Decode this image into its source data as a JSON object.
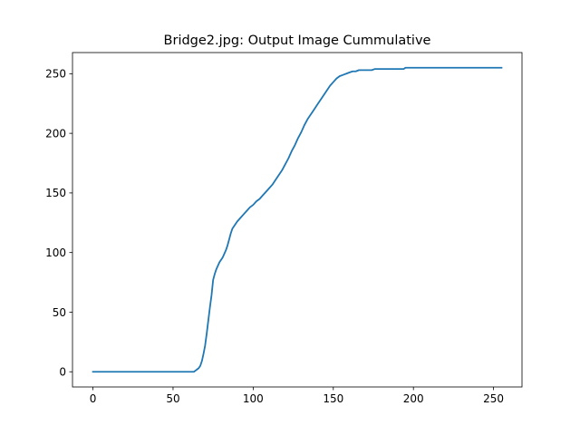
{
  "chart_data": {
    "type": "line",
    "title": "Bridge2.jpg: Output Image Cummulative",
    "xlabel": "",
    "ylabel": "",
    "xlim": [
      -12.75,
      267.75
    ],
    "ylim": [
      -12.75,
      267.75
    ],
    "x_ticks": [
      0,
      50,
      100,
      150,
      200,
      250
    ],
    "y_ticks": [
      0,
      50,
      100,
      150,
      200,
      250
    ],
    "grid": false,
    "legend": "none",
    "series": [
      {
        "color": "#1f77b4",
        "x": [
          0,
          5,
          10,
          20,
          30,
          40,
          50,
          55,
          60,
          62,
          63,
          64,
          65,
          66,
          67,
          68,
          69,
          70,
          71,
          72,
          73,
          74,
          75,
          76,
          77,
          78,
          79,
          80,
          81,
          82,
          83,
          84,
          85,
          86,
          87,
          88,
          89,
          90,
          92,
          94,
          96,
          98,
          100,
          102,
          104,
          106,
          108,
          110,
          112,
          114,
          116,
          118,
          120,
          122,
          124,
          126,
          128,
          130,
          132,
          134,
          136,
          138,
          140,
          142,
          144,
          146,
          148,
          150,
          152,
          154,
          156,
          158,
          160,
          162,
          164,
          166,
          168,
          170,
          172,
          174,
          176,
          180,
          185,
          190,
          194,
          195,
          200,
          210,
          220,
          230,
          240,
          250,
          255
        ],
        "y": [
          0,
          0,
          0,
          0,
          0,
          0,
          0,
          0,
          0,
          0,
          0,
          1,
          2,
          3,
          5,
          9,
          15,
          22,
          32,
          43,
          54,
          64,
          77,
          82,
          86,
          89,
          92,
          94,
          96,
          99,
          102,
          106,
          111,
          116,
          120,
          122,
          124,
          126,
          129,
          132,
          135,
          138,
          140,
          143,
          145,
          148,
          151,
          154,
          157,
          161,
          165,
          169,
          174,
          179,
          185,
          190,
          196,
          201,
          207,
          212,
          216,
          220,
          224,
          228,
          232,
          236,
          240,
          243,
          246,
          248,
          249,
          250,
          251,
          252,
          252,
          253,
          253,
          253,
          253,
          253,
          254,
          254,
          254,
          254,
          254,
          255,
          255,
          255,
          255,
          255,
          255,
          255,
          255
        ]
      }
    ]
  }
}
